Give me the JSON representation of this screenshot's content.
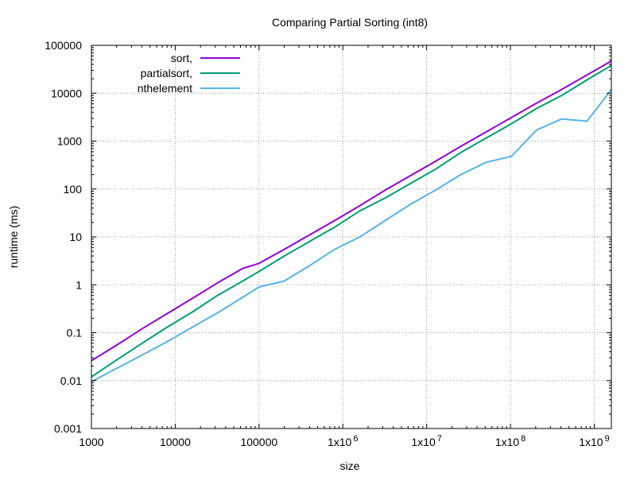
{
  "chart_data": {
    "type": "line",
    "title": "Comparing Partial Sorting (int8)",
    "xlabel": "size",
    "ylabel": "runtime (ms)",
    "xscale": "log",
    "yscale": "log",
    "xlim": [
      1000,
      1600000000
    ],
    "ylim": [
      0.001,
      100000
    ],
    "grid": true,
    "legend_position": "top-left",
    "x_ticks": [
      {
        "value": 1000,
        "label": "1000"
      },
      {
        "value": 10000,
        "label": "10000"
      },
      {
        "value": 100000,
        "label": "100000"
      },
      {
        "value": 1000000,
        "label": "1x10",
        "exp": "6"
      },
      {
        "value": 10000000,
        "label": "1x10",
        "exp": "7"
      },
      {
        "value": 100000000,
        "label": "1x10",
        "exp": "8"
      },
      {
        "value": 1000000000,
        "label": "1x10",
        "exp": "9"
      }
    ],
    "y_ticks": [
      {
        "value": 0.001,
        "label": "0.001"
      },
      {
        "value": 0.01,
        "label": "0.01"
      },
      {
        "value": 0.1,
        "label": "0.1"
      },
      {
        "value": 1,
        "label": "1"
      },
      {
        "value": 10,
        "label": "10"
      },
      {
        "value": 100,
        "label": "100"
      },
      {
        "value": 1000,
        "label": "1000"
      },
      {
        "value": 10000,
        "label": "10000"
      },
      {
        "value": 100000,
        "label": "100000"
      }
    ],
    "series": [
      {
        "name": "sort,",
        "color": "#9400d3",
        "points": [
          [
            1000,
            0.026
          ],
          [
            2000,
            0.055
          ],
          [
            4000,
            0.12
          ],
          [
            8000,
            0.25
          ],
          [
            16000,
            0.52
          ],
          [
            32000,
            1.1
          ],
          [
            64000,
            2.2
          ],
          [
            100000,
            2.8
          ],
          [
            200000,
            5.5
          ],
          [
            400000,
            11
          ],
          [
            800000,
            22
          ],
          [
            1600000,
            45
          ],
          [
            3200000,
            95
          ],
          [
            6400000,
            190
          ],
          [
            12800000,
            380
          ],
          [
            25600000,
            780
          ],
          [
            51200000,
            1550
          ],
          [
            102400000,
            3100
          ],
          [
            204800000,
            6200
          ],
          [
            409600000,
            12000
          ],
          [
            819200000,
            24000
          ],
          [
            1600000000,
            47000
          ]
        ]
      },
      {
        "name": "partialsort,",
        "color": "#009e73",
        "points": [
          [
            1000,
            0.012
          ],
          [
            2000,
            0.027
          ],
          [
            4000,
            0.06
          ],
          [
            8000,
            0.13
          ],
          [
            16000,
            0.27
          ],
          [
            32000,
            0.6
          ],
          [
            64000,
            1.2
          ],
          [
            100000,
            1.9
          ],
          [
            200000,
            4.0
          ],
          [
            400000,
            8.0
          ],
          [
            800000,
            16
          ],
          [
            1600000,
            35
          ],
          [
            3200000,
            65
          ],
          [
            6400000,
            130
          ],
          [
            12800000,
            260
          ],
          [
            25600000,
            580
          ],
          [
            51200000,
            1150
          ],
          [
            102400000,
            2300
          ],
          [
            204800000,
            4800
          ],
          [
            409600000,
            9000
          ],
          [
            819200000,
            19000
          ],
          [
            1600000000,
            38000
          ]
        ]
      },
      {
        "name": "nthelement",
        "color": "#56b4e9",
        "points": [
          [
            1000,
            0.0095
          ],
          [
            2000,
            0.018
          ],
          [
            4000,
            0.034
          ],
          [
            8000,
            0.065
          ],
          [
            16000,
            0.13
          ],
          [
            32000,
            0.26
          ],
          [
            64000,
            0.55
          ],
          [
            100000,
            0.9
          ],
          [
            200000,
            1.2
          ],
          [
            400000,
            2.5
          ],
          [
            800000,
            5.5
          ],
          [
            1600000,
            10
          ],
          [
            3200000,
            22
          ],
          [
            6400000,
            48
          ],
          [
            12800000,
            95
          ],
          [
            25600000,
            200
          ],
          [
            51200000,
            360
          ],
          [
            102400000,
            480
          ],
          [
            204800000,
            1700
          ],
          [
            409600000,
            2900
          ],
          [
            819200000,
            2600
          ],
          [
            1600000000,
            12000
          ]
        ]
      }
    ]
  }
}
